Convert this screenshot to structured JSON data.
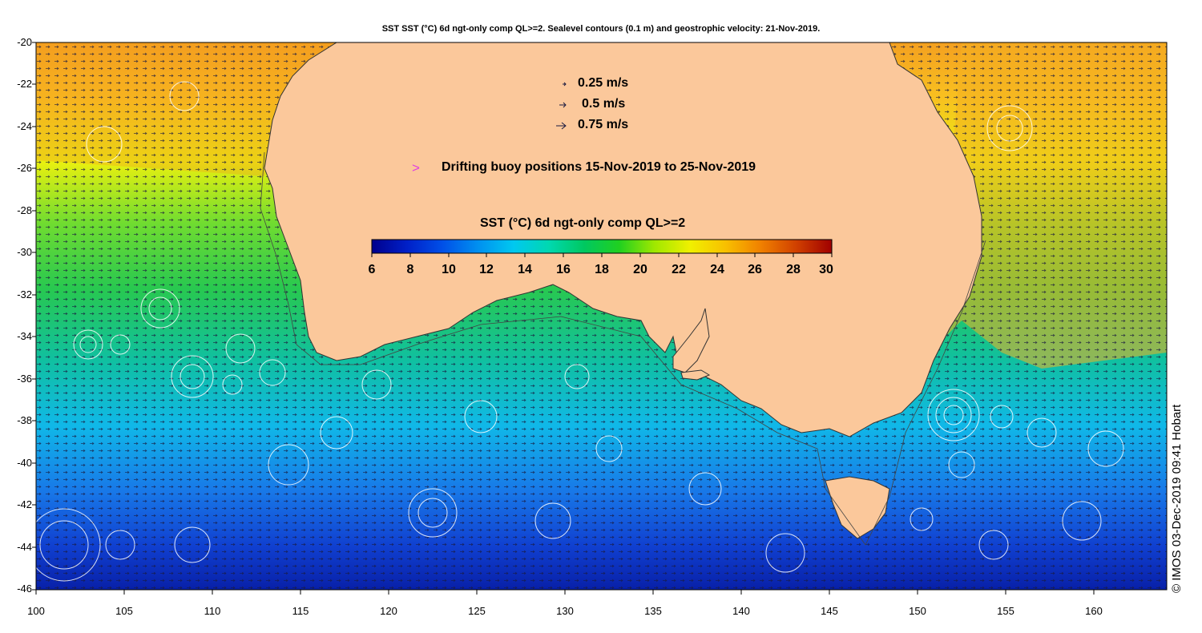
{
  "title": "SST SST (°C) 6d ngt-only comp QL>=2. Sealevel contours (0.1 m) and geostrophic velocity: 21-Nov-2019.",
  "axes": {
    "lat_ticks": [
      "-20",
      "-22",
      "-24",
      "-26",
      "-28",
      "-30",
      "-32",
      "-34",
      "-36",
      "-38",
      "-40",
      "-42",
      "-44",
      "-46"
    ],
    "lon_ticks": [
      "100",
      "105",
      "110",
      "115",
      "120",
      "125",
      "130",
      "135",
      "140",
      "145",
      "150",
      "155",
      "160"
    ],
    "lat_range": [
      -46,
      -20
    ],
    "lon_range": [
      100,
      164.3
    ]
  },
  "velocity_legend": {
    "items": [
      {
        "label": "0.25 m/s",
        "speed": 0.25
      },
      {
        "label": "0.5 m/s",
        "speed": 0.5
      },
      {
        "label": "0.75 m/s",
        "speed": 0.75
      }
    ]
  },
  "buoy_legend": {
    "symbol": ">",
    "label": "Drifting buoy positions 15-Nov-2019 to 25-Nov-2019",
    "color": "#e040e0"
  },
  "colorbar": {
    "title": "SST (°C) 6d ngt-only comp QL>=2",
    "ticks": [
      "6",
      "8",
      "10",
      "12",
      "14",
      "16",
      "18",
      "20",
      "22",
      "24",
      "26",
      "28",
      "30"
    ],
    "range": [
      6,
      30
    ],
    "colors": [
      "#00008c",
      "#0020c8",
      "#0050e8",
      "#0090f0",
      "#00c8f0",
      "#00d8b0",
      "#00c860",
      "#20d020",
      "#a0e800",
      "#f0f000",
      "#f8c000",
      "#f08000",
      "#d04000",
      "#a00000"
    ]
  },
  "colors": {
    "land": "#fbc89b",
    "contour": "#ffffff",
    "vector": "#1a1a40"
  },
  "credit": "© IMOS 03-Dec-2019 09:41 Hobart"
}
